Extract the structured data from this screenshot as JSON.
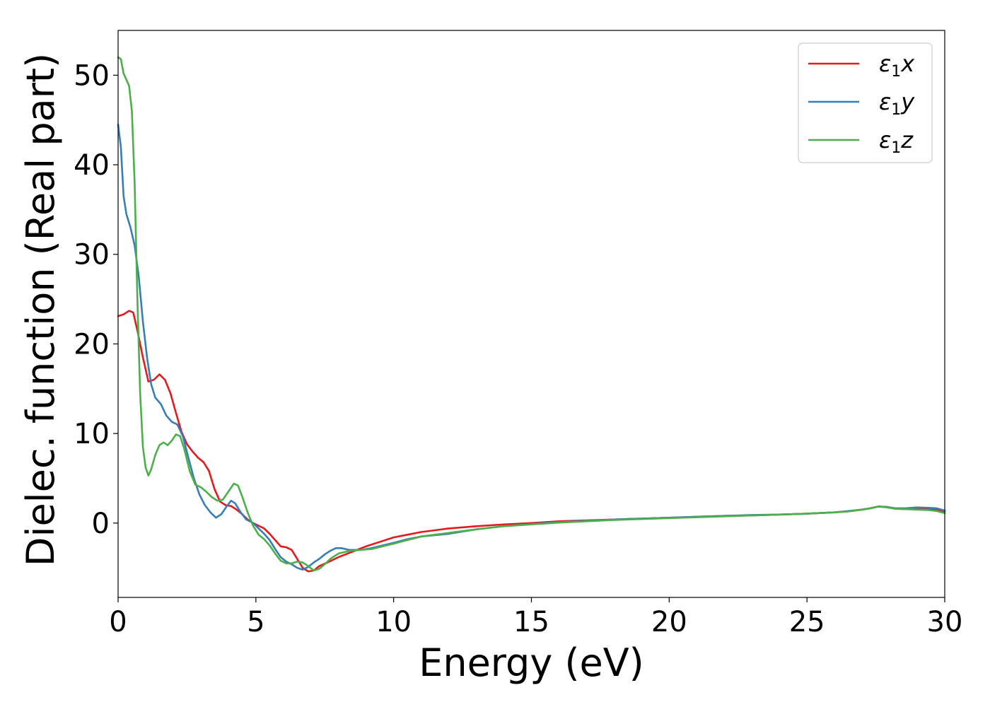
{
  "chart_data": {
    "type": "line",
    "xlabel": "Energy (eV)",
    "ylabel": "Dielec. function (Real part)",
    "xlim": [
      0,
      30
    ],
    "ylim": [
      -8.3,
      55
    ],
    "xticks": [
      0,
      5,
      10,
      15,
      20,
      25,
      30
    ],
    "yticks": [
      0,
      10,
      20,
      30,
      40,
      50
    ],
    "grid": false,
    "legend_position": "top-right",
    "series": [
      {
        "name": "ε₁x",
        "legend_main": "ε",
        "legend_sub": "1",
        "legend_suffix": "x",
        "color": "#e41a1c",
        "points": [
          [
            0,
            23.1
          ],
          [
            0.2,
            23.3
          ],
          [
            0.4,
            23.7
          ],
          [
            0.55,
            23.5
          ],
          [
            0.7,
            21.5
          ],
          [
            0.9,
            18.5
          ],
          [
            1.1,
            15.8
          ],
          [
            1.3,
            16.0
          ],
          [
            1.5,
            16.6
          ],
          [
            1.7,
            16.0
          ],
          [
            1.9,
            14.5
          ],
          [
            2.1,
            12.3
          ],
          [
            2.3,
            10.2
          ],
          [
            2.5,
            8.8
          ],
          [
            2.7,
            8.0
          ],
          [
            2.9,
            7.3
          ],
          [
            3.1,
            6.8
          ],
          [
            3.3,
            5.8
          ],
          [
            3.5,
            3.8
          ],
          [
            3.7,
            2.4
          ],
          [
            3.9,
            2.0
          ],
          [
            4.1,
            1.9
          ],
          [
            4.3,
            1.5
          ],
          [
            4.5,
            1.0
          ],
          [
            4.7,
            0.4
          ],
          [
            4.9,
            0.0
          ],
          [
            5.1,
            -0.3
          ],
          [
            5.3,
            -0.6
          ],
          [
            5.5,
            -1.2
          ],
          [
            5.7,
            -1.9
          ],
          [
            5.9,
            -2.6
          ],
          [
            6.1,
            -2.7
          ],
          [
            6.3,
            -3.0
          ],
          [
            6.5,
            -4.0
          ],
          [
            6.7,
            -5.0
          ],
          [
            6.9,
            -5.4
          ],
          [
            7.1,
            -5.3
          ],
          [
            7.3,
            -4.8
          ],
          [
            7.6,
            -4.4
          ],
          [
            8.0,
            -3.8
          ],
          [
            8.5,
            -3.2
          ],
          [
            9.0,
            -2.6
          ],
          [
            9.5,
            -2.1
          ],
          [
            10.0,
            -1.6
          ],
          [
            10.5,
            -1.3
          ],
          [
            11.0,
            -1.0
          ],
          [
            11.5,
            -0.8
          ],
          [
            12.0,
            -0.6
          ],
          [
            13.0,
            -0.35
          ],
          [
            14.0,
            -0.15
          ],
          [
            15.0,
            0.0
          ],
          [
            16.0,
            0.2
          ],
          [
            17.0,
            0.3
          ],
          [
            18.0,
            0.4
          ],
          [
            19.0,
            0.5
          ],
          [
            20.0,
            0.6
          ],
          [
            21.0,
            0.7
          ],
          [
            22.0,
            0.8
          ],
          [
            23.0,
            0.85
          ],
          [
            24.0,
            0.95
          ],
          [
            25.0,
            1.05
          ],
          [
            26.0,
            1.2
          ],
          [
            26.5,
            1.3
          ],
          [
            27.0,
            1.5
          ],
          [
            27.3,
            1.65
          ],
          [
            27.6,
            1.85
          ],
          [
            27.9,
            1.8
          ],
          [
            28.2,
            1.6
          ],
          [
            28.6,
            1.55
          ],
          [
            29.0,
            1.6
          ],
          [
            29.4,
            1.55
          ],
          [
            29.7,
            1.5
          ],
          [
            30.0,
            1.3
          ]
        ]
      },
      {
        "name": "ε₁y",
        "legend_main": "ε",
        "legend_sub": "1",
        "legend_suffix": "y",
        "color": "#377eb8",
        "points": [
          [
            0,
            44.5
          ],
          [
            0.1,
            42.0
          ],
          [
            0.2,
            36.5
          ],
          [
            0.3,
            34.5
          ],
          [
            0.45,
            33.0
          ],
          [
            0.6,
            31.0
          ],
          [
            0.75,
            27.5
          ],
          [
            0.9,
            22.5
          ],
          [
            1.05,
            18.5
          ],
          [
            1.2,
            15.5
          ],
          [
            1.35,
            14.0
          ],
          [
            1.55,
            13.3
          ],
          [
            1.75,
            12.0
          ],
          [
            1.95,
            11.3
          ],
          [
            2.15,
            11.0
          ],
          [
            2.35,
            9.7
          ],
          [
            2.55,
            7.3
          ],
          [
            2.75,
            5.0
          ],
          [
            2.95,
            3.2
          ],
          [
            3.15,
            2.0
          ],
          [
            3.35,
            1.2
          ],
          [
            3.55,
            0.6
          ],
          [
            3.75,
            1.0
          ],
          [
            3.95,
            1.9
          ],
          [
            4.1,
            2.5
          ],
          [
            4.25,
            2.2
          ],
          [
            4.45,
            1.2
          ],
          [
            4.65,
            0.4
          ],
          [
            4.9,
            0.0
          ],
          [
            5.1,
            -0.6
          ],
          [
            5.3,
            -1.2
          ],
          [
            5.5,
            -1.9
          ],
          [
            5.7,
            -2.9
          ],
          [
            5.9,
            -3.8
          ],
          [
            6.1,
            -4.3
          ],
          [
            6.3,
            -4.6
          ],
          [
            6.5,
            -5.0
          ],
          [
            6.7,
            -5.2
          ],
          [
            6.9,
            -4.9
          ],
          [
            7.1,
            -4.4
          ],
          [
            7.3,
            -4.0
          ],
          [
            7.5,
            -3.5
          ],
          [
            7.7,
            -3.1
          ],
          [
            7.9,
            -2.8
          ],
          [
            8.1,
            -2.8
          ],
          [
            8.4,
            -3.0
          ],
          [
            8.8,
            -3.0
          ],
          [
            9.2,
            -2.8
          ],
          [
            9.6,
            -2.5
          ],
          [
            10.0,
            -2.2
          ],
          [
            10.5,
            -1.8
          ],
          [
            11.0,
            -1.5
          ],
          [
            12.0,
            -1.2
          ],
          [
            13.0,
            -0.7
          ],
          [
            14.0,
            -0.35
          ],
          [
            15.0,
            -0.1
          ],
          [
            16.0,
            0.1
          ],
          [
            17.0,
            0.25
          ],
          [
            18.0,
            0.4
          ],
          [
            19.0,
            0.5
          ],
          [
            20.0,
            0.6
          ],
          [
            21.0,
            0.7
          ],
          [
            22.0,
            0.8
          ],
          [
            23.0,
            0.9
          ],
          [
            24.0,
            0.95
          ],
          [
            25.0,
            1.05
          ],
          [
            26.0,
            1.2
          ],
          [
            26.5,
            1.35
          ],
          [
            27.0,
            1.5
          ],
          [
            27.3,
            1.65
          ],
          [
            27.6,
            1.85
          ],
          [
            27.9,
            1.8
          ],
          [
            28.2,
            1.65
          ],
          [
            28.6,
            1.65
          ],
          [
            29.0,
            1.75
          ],
          [
            29.4,
            1.7
          ],
          [
            29.7,
            1.65
          ],
          [
            30.0,
            1.4
          ]
        ]
      },
      {
        "name": "ε₁z",
        "legend_main": "ε",
        "legend_sub": "1",
        "legend_suffix": "z",
        "color": "#4daf4a",
        "points": [
          [
            0,
            52.0
          ],
          [
            0.1,
            51.8
          ],
          [
            0.2,
            50.2
          ],
          [
            0.3,
            49.5
          ],
          [
            0.4,
            48.8
          ],
          [
            0.5,
            46.0
          ],
          [
            0.6,
            38.0
          ],
          [
            0.7,
            25.0
          ],
          [
            0.8,
            14.5
          ],
          [
            0.9,
            8.5
          ],
          [
            1.0,
            6.2
          ],
          [
            1.1,
            5.3
          ],
          [
            1.2,
            6.0
          ],
          [
            1.35,
            7.6
          ],
          [
            1.5,
            8.7
          ],
          [
            1.65,
            9.0
          ],
          [
            1.8,
            8.7
          ],
          [
            1.95,
            9.2
          ],
          [
            2.1,
            9.9
          ],
          [
            2.25,
            9.7
          ],
          [
            2.4,
            8.3
          ],
          [
            2.6,
            5.8
          ],
          [
            2.8,
            4.3
          ],
          [
            3.0,
            4.0
          ],
          [
            3.2,
            3.5
          ],
          [
            3.4,
            2.9
          ],
          [
            3.6,
            2.5
          ],
          [
            3.8,
            2.6
          ],
          [
            4.0,
            3.5
          ],
          [
            4.2,
            4.4
          ],
          [
            4.35,
            4.2
          ],
          [
            4.5,
            3.0
          ],
          [
            4.7,
            1.2
          ],
          [
            4.9,
            -0.3
          ],
          [
            5.1,
            -1.3
          ],
          [
            5.3,
            -1.8
          ],
          [
            5.5,
            -2.5
          ],
          [
            5.7,
            -3.4
          ],
          [
            5.9,
            -4.2
          ],
          [
            6.1,
            -4.5
          ],
          [
            6.3,
            -4.5
          ],
          [
            6.5,
            -4.3
          ],
          [
            6.7,
            -4.4
          ],
          [
            6.9,
            -4.8
          ],
          [
            7.1,
            -5.3
          ],
          [
            7.3,
            -5.1
          ],
          [
            7.5,
            -4.6
          ],
          [
            7.7,
            -4.0
          ],
          [
            8.0,
            -3.4
          ],
          [
            8.4,
            -3.1
          ],
          [
            8.8,
            -3.0
          ],
          [
            9.2,
            -2.9
          ],
          [
            9.6,
            -2.6
          ],
          [
            10.0,
            -2.3
          ],
          [
            10.5,
            -1.9
          ],
          [
            11.0,
            -1.5
          ],
          [
            12.0,
            -1.1
          ],
          [
            13.0,
            -0.7
          ],
          [
            14.0,
            -0.35
          ],
          [
            15.0,
            -0.15
          ],
          [
            16.0,
            0.05
          ],
          [
            17.0,
            0.2
          ],
          [
            18.0,
            0.35
          ],
          [
            19.0,
            0.45
          ],
          [
            20.0,
            0.55
          ],
          [
            21.0,
            0.65
          ],
          [
            22.0,
            0.75
          ],
          [
            23.0,
            0.85
          ],
          [
            24.0,
            0.95
          ],
          [
            25.0,
            1.05
          ],
          [
            26.0,
            1.2
          ],
          [
            26.5,
            1.3
          ],
          [
            27.0,
            1.5
          ],
          [
            27.3,
            1.65
          ],
          [
            27.6,
            1.85
          ],
          [
            27.9,
            1.75
          ],
          [
            28.2,
            1.6
          ],
          [
            28.6,
            1.55
          ],
          [
            29.0,
            1.5
          ],
          [
            29.4,
            1.45
          ],
          [
            29.7,
            1.35
          ],
          [
            30.0,
            1.1
          ]
        ]
      }
    ]
  }
}
